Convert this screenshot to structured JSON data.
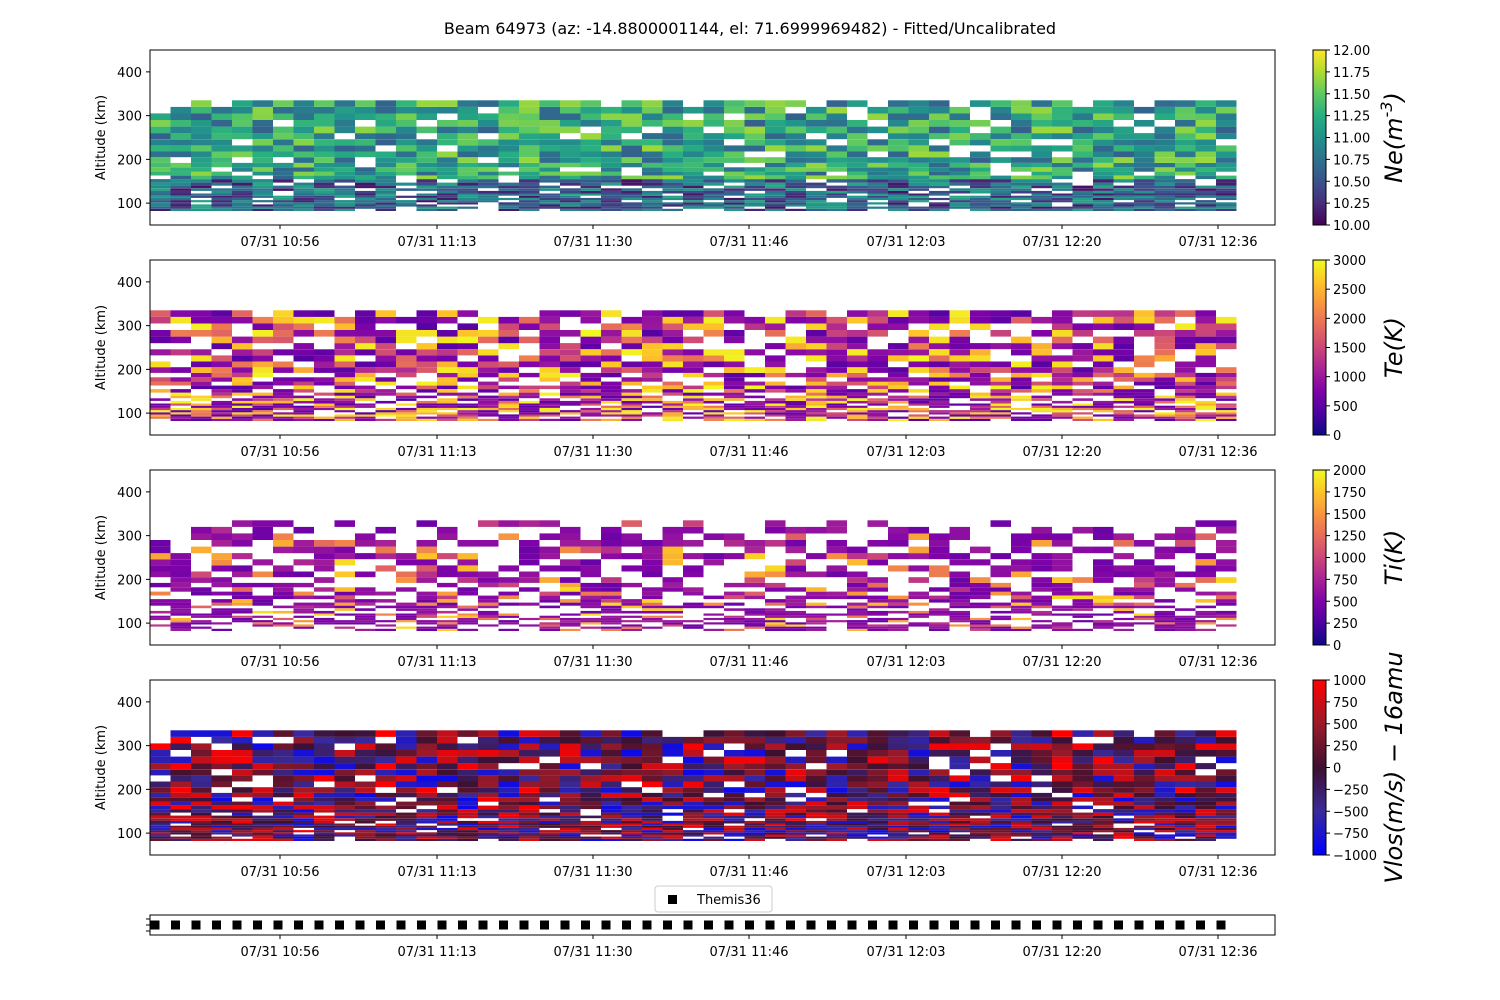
{
  "figure": {
    "title": "Beam 64973 (az: -14.8800001144, el: 71.6999969482) - Fitted/Uncalibrated"
  },
  "chart_data": [
    {
      "type": "heatmap",
      "ylabel": "Altitude (km)",
      "ylim": [
        50,
        450
      ],
      "yticks": [
        100,
        200,
        300,
        400
      ],
      "xticks": [
        "07/31 10:56",
        "07/31 11:13",
        "07/31 11:30",
        "07/31 11:46",
        "07/31 12:03",
        "07/31 12:20",
        "07/31 12:36"
      ],
      "n_time_bins": 53,
      "x_start": "07/31 10:42",
      "x_end": "07/31 12:44",
      "colorbar": {
        "label": "Ne(m^-3)",
        "min": 10.0,
        "max": 12.0,
        "ticks": [
          "10.00",
          "10.25",
          "10.50",
          "10.75",
          "11.00",
          "11.25",
          "11.50",
          "11.75",
          "12.00"
        ],
        "colormap": "viridis",
        "scale": "log10"
      },
      "approx_value_range": [
        10.2,
        11.9
      ],
      "fill_fraction": 0.88
    },
    {
      "type": "heatmap",
      "ylabel": "Altitude (km)",
      "ylim": [
        50,
        450
      ],
      "yticks": [
        100,
        200,
        300,
        400
      ],
      "xticks": [
        "07/31 10:56",
        "07/31 11:13",
        "07/31 11:30",
        "07/31 11:46",
        "07/31 12:03",
        "07/31 12:20",
        "07/31 12:36"
      ],
      "n_time_bins": 53,
      "colorbar": {
        "label": "Te(K)",
        "min": 0,
        "max": 3000,
        "ticks": [
          "0",
          "500",
          "1000",
          "1500",
          "2000",
          "2500",
          "3000"
        ],
        "colormap": "plasma"
      },
      "approx_value_range": [
        300,
        3000
      ],
      "fill_fraction": 0.8
    },
    {
      "type": "heatmap",
      "ylabel": "Altitude (km)",
      "ylim": [
        50,
        450
      ],
      "yticks": [
        100,
        200,
        300,
        400
      ],
      "xticks": [
        "07/31 10:56",
        "07/31 11:13",
        "07/31 11:30",
        "07/31 11:46",
        "07/31 12:03",
        "07/31 12:20",
        "07/31 12:36"
      ],
      "n_time_bins": 53,
      "colorbar": {
        "label": "Ti(K)",
        "min": 0,
        "max": 2000,
        "ticks": [
          "0",
          "250",
          "500",
          "750",
          "1000",
          "1250",
          "1500",
          "1750",
          "2000"
        ],
        "colormap": "plasma"
      },
      "approx_value_range": [
        400,
        2000
      ],
      "fill_fraction": 0.6
    },
    {
      "type": "heatmap",
      "ylabel": "Altitude (km)",
      "ylim": [
        50,
        450
      ],
      "yticks": [
        100,
        200,
        300,
        400
      ],
      "xticks": [
        "07/31 10:56",
        "07/31 11:13",
        "07/31 11:30",
        "07/31 11:46",
        "07/31 12:03",
        "07/31 12:20",
        "07/31 12:36"
      ],
      "n_time_bins": 53,
      "colorbar": {
        "label": "Vlos(m/s) − 16amu",
        "min": -1000,
        "max": 1000,
        "ticks": [
          "−1000",
          "−750",
          "−500",
          "−250",
          "0",
          "250",
          "500",
          "750",
          "1000"
        ],
        "colormap": "blue-darkred-red"
      },
      "approx_value_range": [
        -1000,
        1000
      ],
      "fill_fraction": 0.9
    },
    {
      "type": "scatter",
      "legend": [
        "Themis36"
      ],
      "legend_placement": "top-center",
      "marker": "square",
      "n_points": 53,
      "xticks": [
        "07/31 10:56",
        "07/31 11:13",
        "07/31 11:30",
        "07/31 11:46",
        "07/31 12:03",
        "07/31 12:20",
        "07/31 12:36"
      ]
    }
  ],
  "colors": {
    "missing_data": "#ffffff",
    "marker": "#000000"
  }
}
